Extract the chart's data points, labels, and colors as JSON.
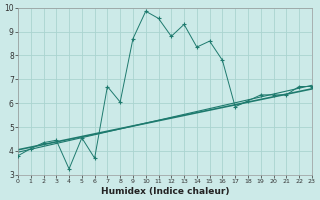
{
  "background_color": "#cceae8",
  "grid_color": "#aad4d0",
  "line_color": "#1e7a6e",
  "xlabel": "Humidex (Indice chaleur)",
  "ylim": [
    3,
    10
  ],
  "xlim": [
    0,
    23
  ],
  "yticks": [
    3,
    4,
    5,
    6,
    7,
    8,
    9,
    10
  ],
  "xticks": [
    0,
    1,
    2,
    3,
    4,
    5,
    6,
    7,
    8,
    9,
    10,
    11,
    12,
    13,
    14,
    15,
    16,
    17,
    18,
    19,
    20,
    21,
    22,
    23
  ],
  "curve_x": [
    0,
    1,
    2,
    3,
    4,
    5,
    6,
    7,
    8,
    9,
    10,
    11,
    12,
    13,
    14,
    15,
    16,
    17,
    18,
    19,
    20,
    21,
    22,
    23
  ],
  "curve_y": [
    3.8,
    4.1,
    4.35,
    4.45,
    3.25,
    4.55,
    3.7,
    6.7,
    6.05,
    8.7,
    9.85,
    9.55,
    8.8,
    9.3,
    8.35,
    8.6,
    7.8,
    5.85,
    6.1,
    6.35,
    6.35,
    6.35,
    6.7,
    6.7
  ],
  "line1_x": [
    0,
    23
  ],
  "line1_y": [
    4.05,
    6.6
  ],
  "line2_x": [
    0,
    23
  ],
  "line2_y": [
    3.95,
    6.75
  ]
}
